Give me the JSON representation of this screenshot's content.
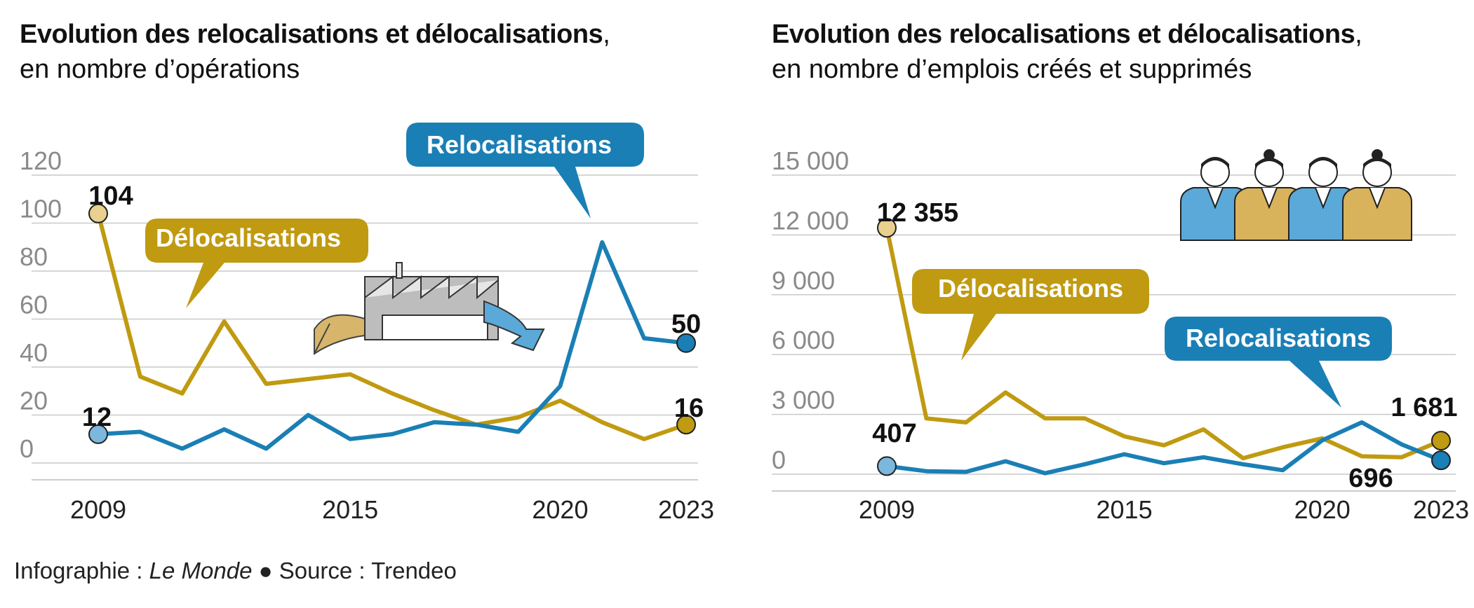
{
  "credit": {
    "prefix": "Infographie : ",
    "publisher": "Le Monde",
    "separator": " ● ",
    "source": "Source : Trendeo"
  },
  "colors": {
    "relocalisations": "#1a7fb5",
    "delocalisations": "#c09a10",
    "grid": "#c9c9c9",
    "marker_start_reloc": "#7cb7dd",
    "marker_start_deloc": "#ead08f"
  },
  "chart_data": [
    {
      "type": "line",
      "title": "Evolution des relocalisations et délocalisations",
      "subtitle": "en nombre d’opérations",
      "xlabel": "",
      "ylabel": "",
      "ylim": [
        0,
        120
      ],
      "yticks": [
        0,
        20,
        40,
        60,
        80,
        100,
        120
      ],
      "ytick_labels": [
        "0",
        "20",
        "40",
        "60",
        "80",
        "100",
        "120"
      ],
      "xticks": [
        2009,
        2015,
        2020,
        2023
      ],
      "xtick_labels": [
        "2009",
        "2015",
        "2020",
        "2023"
      ],
      "x": [
        2009,
        2010,
        2011,
        2012,
        2013,
        2014,
        2015,
        2016,
        2017,
        2018,
        2019,
        2020,
        2021,
        2022,
        2023
      ],
      "grid": true,
      "series": [
        {
          "name": "Relocalisations",
          "color": "#1a7fb5",
          "values": [
            12,
            13,
            6,
            14,
            6,
            20,
            10,
            12,
            17,
            16,
            13,
            32,
            92,
            52,
            50
          ]
        },
        {
          "name": "Délocalisations",
          "color": "#c09a10",
          "values": [
            104,
            36,
            29,
            59,
            33,
            35,
            37,
            29,
            22,
            16,
            19,
            26,
            17,
            10,
            16
          ]
        }
      ],
      "value_labels": {
        "deloc_start": "104",
        "reloc_start": "12",
        "reloc_end": "50",
        "deloc_end": "16"
      },
      "callouts": {
        "delocalisations": "Délocalisations",
        "relocalisations": "Relocalisations"
      }
    },
    {
      "type": "line",
      "title": "Evolution des relocalisations et délocalisations",
      "subtitle": "en nombre d’emplois créés et supprimés",
      "xlabel": "",
      "ylabel": "",
      "ylim": [
        0,
        15000
      ],
      "yticks": [
        0,
        3000,
        6000,
        9000,
        12000,
        15000
      ],
      "ytick_labels": [
        "0",
        "3 000",
        "6 000",
        "9 000",
        "12 000",
        "15 000"
      ],
      "xticks": [
        2009,
        2015,
        2020,
        2023
      ],
      "xtick_labels": [
        "2009",
        "2015",
        "2020",
        "2023"
      ],
      "x": [
        2009,
        2010,
        2011,
        2012,
        2013,
        2014,
        2015,
        2016,
        2017,
        2018,
        2019,
        2020,
        2021,
        2022,
        2023
      ],
      "grid": true,
      "series": [
        {
          "name": "Relocalisations",
          "color": "#1a7fb5",
          "values": [
            407,
            150,
            120,
            650,
            50,
            500,
            1000,
            550,
            850,
            500,
            200,
            1700,
            2600,
            1500,
            696
          ]
        },
        {
          "name": "Délocalisations",
          "color": "#c09a10",
          "values": [
            12355,
            2800,
            2600,
            4100,
            2800,
            2800,
            1900,
            1450,
            2250,
            800,
            1350,
            1800,
            900,
            850,
            1681
          ]
        }
      ],
      "value_labels": {
        "deloc_start": "12 355",
        "reloc_start": "407",
        "deloc_end": "1 681",
        "reloc_end": "696"
      },
      "callouts": {
        "delocalisations": "Délocalisations",
        "relocalisations": "Relocalisations"
      }
    }
  ]
}
